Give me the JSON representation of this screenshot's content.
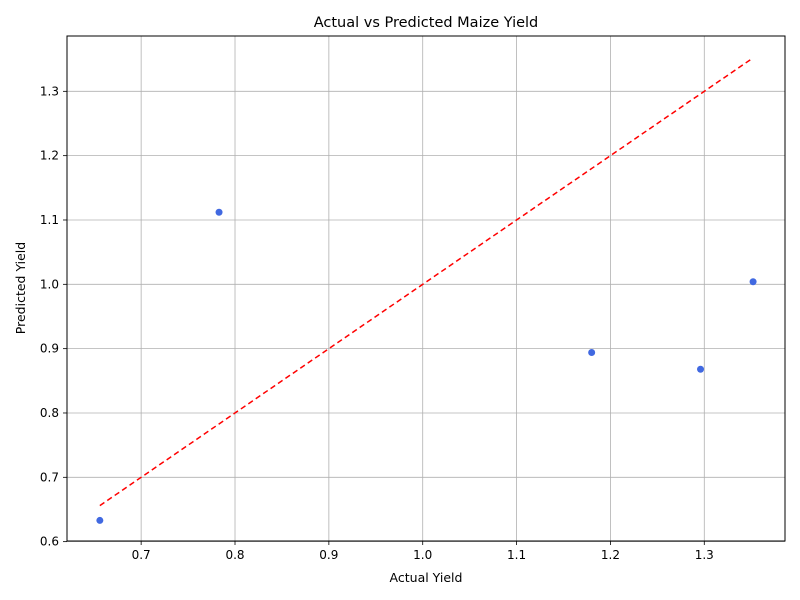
{
  "chart_data": {
    "type": "scatter",
    "title": "Actual vs Predicted Maize Yield",
    "xlabel": "Actual Yield",
    "ylabel": "Predicted Yield",
    "xlim": [
      0.621,
      1.386
    ],
    "ylim": [
      0.601,
      1.386
    ],
    "xticks": [
      "0.7",
      "0.8",
      "0.9",
      "1.0",
      "1.1",
      "1.2",
      "1.3"
    ],
    "yticks": [
      "0.6",
      "0.7",
      "0.8",
      "0.9",
      "1.0",
      "1.1",
      "1.2",
      "1.3"
    ],
    "grid": true,
    "points": [
      {
        "x": 0.656,
        "y": 0.633
      },
      {
        "x": 0.783,
        "y": 1.112
      },
      {
        "x": 1.18,
        "y": 0.894
      },
      {
        "x": 1.296,
        "y": 0.868
      },
      {
        "x": 1.352,
        "y": 1.004
      }
    ],
    "reference_line": {
      "x": [
        0.656,
        1.352
      ],
      "y": [
        0.656,
        1.352
      ],
      "style": "dashed"
    },
    "colors": {
      "points": "#4169e1",
      "reference_line": "#ff0000",
      "grid": "#b0b0b0"
    }
  }
}
